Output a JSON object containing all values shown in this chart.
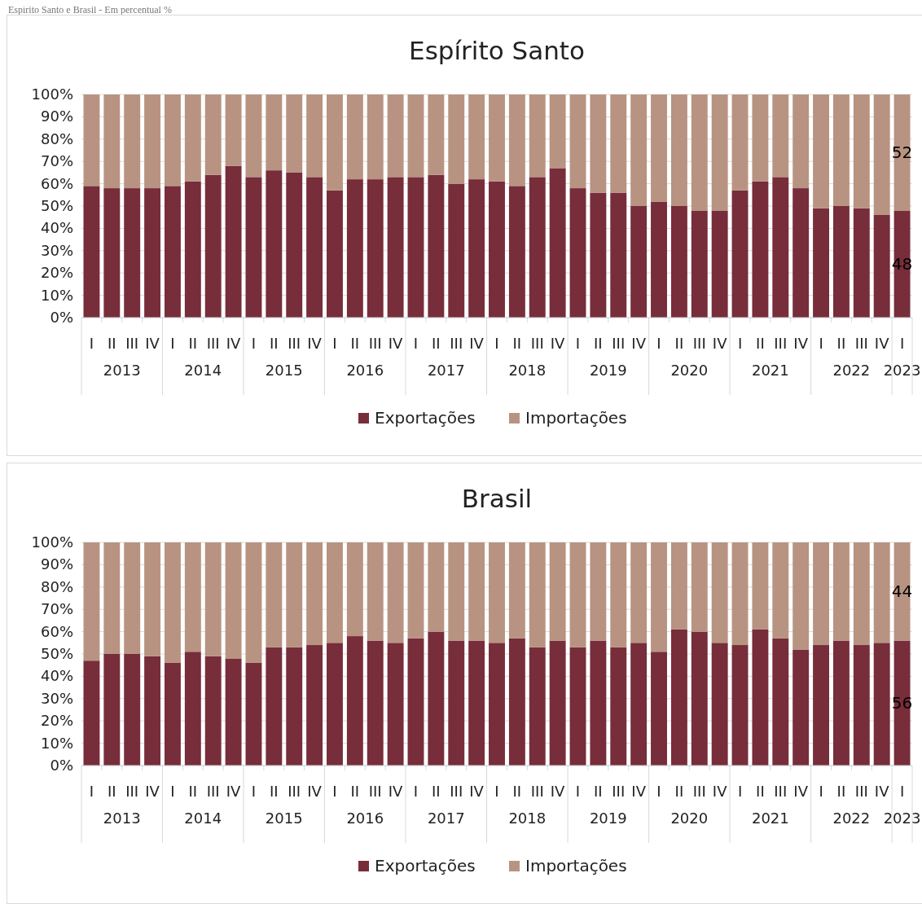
{
  "chart_data": [
    {
      "type": "bar",
      "title": "Espírito Santo",
      "subtitle": "Espírito Santo e Brasil - Em percentual %",
      "stacked": true,
      "categories": [
        "I",
        "II",
        "III",
        "IV",
        "I",
        "II",
        "III",
        "IV",
        "I",
        "II",
        "III",
        "IV",
        "I",
        "II",
        "III",
        "IV",
        "I",
        "II",
        "III",
        "IV",
        "I",
        "II",
        "III",
        "IV",
        "I",
        "II",
        "III",
        "IV",
        "I",
        "II",
        "III",
        "IV",
        "I",
        "II",
        "III",
        "IV",
        "I",
        "II",
        "III",
        "IV",
        "I"
      ],
      "annotations": [
        "2013",
        "2014",
        "2015",
        "2016",
        "2017",
        "2018",
        "2019",
        "2020",
        "2021",
        "2022",
        "2023"
      ],
      "series": [
        {
          "name": "Exportações",
          "color": "#772d3a",
          "values": [
            59,
            58,
            58,
            58,
            59,
            61,
            64,
            68,
            63,
            66,
            65,
            63,
            57,
            62,
            62,
            63,
            63,
            64,
            60,
            62,
            61,
            59,
            63,
            67,
            58,
            56,
            56,
            50,
            52,
            50,
            48,
            48,
            57,
            61,
            63,
            58,
            49,
            50,
            49,
            46,
            48
          ],
          "value_labels": [
            null,
            null,
            null,
            null,
            null,
            null,
            null,
            null,
            null,
            null,
            null,
            null,
            null,
            null,
            null,
            null,
            null,
            null,
            null,
            null,
            null,
            null,
            null,
            null,
            null,
            null,
            null,
            null,
            null,
            null,
            null,
            null,
            null,
            null,
            null,
            null,
            null,
            null,
            null,
            null,
            "48"
          ]
        },
        {
          "name": "Importações",
          "color": "#b89382",
          "values": [
            41,
            42,
            42,
            42,
            41,
            39,
            36,
            32,
            37,
            34,
            35,
            37,
            43,
            38,
            38,
            37,
            37,
            36,
            40,
            38,
            39,
            41,
            37,
            33,
            42,
            44,
            44,
            50,
            48,
            50,
            52,
            52,
            43,
            39,
            37,
            42,
            51,
            50,
            51,
            54,
            52
          ],
          "value_labels": [
            null,
            null,
            null,
            null,
            null,
            null,
            null,
            null,
            null,
            null,
            null,
            null,
            null,
            null,
            null,
            null,
            null,
            null,
            null,
            null,
            null,
            null,
            null,
            null,
            null,
            null,
            null,
            null,
            null,
            null,
            null,
            null,
            null,
            null,
            null,
            null,
            null,
            null,
            null,
            null,
            "52"
          ]
        }
      ],
      "ylim": [
        0,
        100
      ],
      "yticks": [
        {
          "value": 0,
          "label": "0%"
        },
        {
          "value": 10,
          "label": "10%"
        },
        {
          "value": 20,
          "label": "20%"
        },
        {
          "value": 30,
          "label": "30%"
        },
        {
          "value": 40,
          "label": "40%"
        },
        {
          "value": 50,
          "label": "50%"
        },
        {
          "value": 60,
          "label": "60%"
        },
        {
          "value": 70,
          "label": "70%"
        },
        {
          "value": 80,
          "label": "80%"
        },
        {
          "value": 90,
          "label": "90%"
        },
        {
          "value": 100,
          "label": "100%"
        }
      ],
      "grid": "y",
      "legend": "bottom"
    },
    {
      "type": "bar",
      "title": "Brasil",
      "stacked": true,
      "categories": [
        "I",
        "II",
        "III",
        "IV",
        "I",
        "II",
        "III",
        "IV",
        "I",
        "II",
        "III",
        "IV",
        "I",
        "II",
        "III",
        "IV",
        "I",
        "II",
        "III",
        "IV",
        "I",
        "II",
        "III",
        "IV",
        "I",
        "II",
        "III",
        "IV",
        "I",
        "II",
        "III",
        "IV",
        "I",
        "II",
        "III",
        "IV",
        "I",
        "II",
        "III",
        "IV",
        "I"
      ],
      "annotations": [
        "2013",
        "2014",
        "2015",
        "2016",
        "2017",
        "2018",
        "2019",
        "2020",
        "2021",
        "2022",
        "2023"
      ],
      "series": [
        {
          "name": "Exportações",
          "color": "#772d3a",
          "values": [
            47,
            50,
            50,
            49,
            46,
            51,
            49,
            48,
            46,
            53,
            53,
            54,
            55,
            58,
            56,
            55,
            57,
            60,
            56,
            56,
            55,
            57,
            53,
            56,
            53,
            56,
            53,
            55,
            51,
            61,
            60,
            55,
            54,
            61,
            57,
            52,
            54,
            56,
            54,
            55,
            56
          ],
          "value_labels": [
            null,
            null,
            null,
            null,
            null,
            null,
            null,
            null,
            null,
            null,
            null,
            null,
            null,
            null,
            null,
            null,
            null,
            null,
            null,
            null,
            null,
            null,
            null,
            null,
            null,
            null,
            null,
            null,
            null,
            null,
            null,
            null,
            null,
            null,
            null,
            null,
            null,
            null,
            null,
            null,
            "56"
          ]
        },
        {
          "name": "Importações",
          "color": "#b89382",
          "values": [
            53,
            50,
            50,
            51,
            54,
            49,
            51,
            52,
            54,
            47,
            47,
            46,
            45,
            42,
            44,
            45,
            43,
            40,
            44,
            44,
            45,
            43,
            47,
            44,
            47,
            44,
            47,
            45,
            49,
            39,
            40,
            45,
            46,
            39,
            43,
            48,
            46,
            44,
            46,
            45,
            44
          ],
          "value_labels": [
            null,
            null,
            null,
            null,
            null,
            null,
            null,
            null,
            null,
            null,
            null,
            null,
            null,
            null,
            null,
            null,
            null,
            null,
            null,
            null,
            null,
            null,
            null,
            null,
            null,
            null,
            null,
            null,
            null,
            null,
            null,
            null,
            null,
            null,
            null,
            null,
            null,
            null,
            null,
            null,
            "44"
          ]
        }
      ],
      "ylim": [
        0,
        100
      ],
      "yticks": [
        {
          "value": 0,
          "label": "0%"
        },
        {
          "value": 10,
          "label": "10%"
        },
        {
          "value": 20,
          "label": "20%"
        },
        {
          "value": 30,
          "label": "30%"
        },
        {
          "value": 40,
          "label": "40%"
        },
        {
          "value": 50,
          "label": "50%"
        },
        {
          "value": 60,
          "label": "60%"
        },
        {
          "value": 70,
          "label": "70%"
        },
        {
          "value": 80,
          "label": "80%"
        },
        {
          "value": 90,
          "label": "90%"
        },
        {
          "value": 100,
          "label": "100%"
        }
      ],
      "grid": "y",
      "legend": "bottom"
    }
  ]
}
